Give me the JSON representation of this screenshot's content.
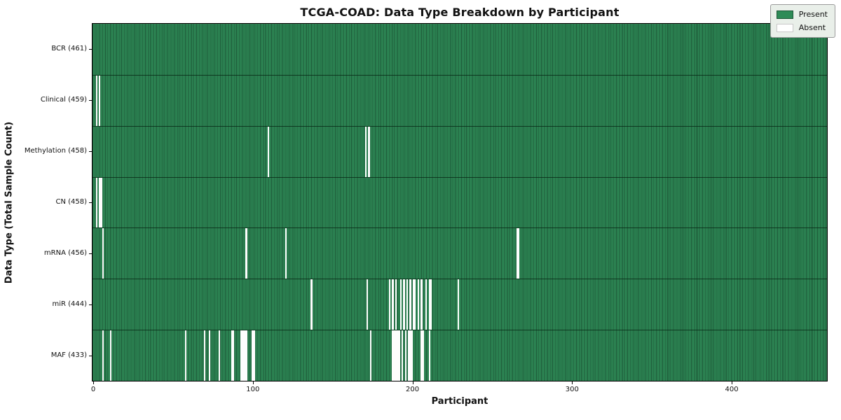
{
  "title": "TCGA-COAD: Data Type Breakdown by Participant",
  "xlabel": "Participant",
  "ylabel": "Data Type (Total Sample Count)",
  "legend": {
    "present_label": "Present",
    "absent_label": "Absent"
  },
  "colors": {
    "present": "#2e8b57",
    "present_edge": "#1d5737",
    "absent": "#fdfdfd",
    "legend_bg": "#e9efe9"
  },
  "chart_data": {
    "type": "heatmap",
    "title": "TCGA-COAD: Data Type Breakdown by Participant",
    "xlabel": "Participant",
    "ylabel": "Data Type (Total Sample Count)",
    "legend_entries": [
      "Present",
      "Absent"
    ],
    "legend_position": "upper right",
    "grid": false,
    "total_participants": 461,
    "xlim": [
      0,
      461
    ],
    "x_ticks": [
      0,
      100,
      200,
      300,
      400
    ],
    "rows": [
      {
        "name": "BCR",
        "label": "BCR (461)",
        "present_count": 461,
        "absent_participants": []
      },
      {
        "name": "Clinical",
        "label": "Clinical (459)",
        "present_count": 459,
        "absent_participants": [
          2,
          4
        ]
      },
      {
        "name": "Methylation",
        "label": "Methylation (458)",
        "present_count": 458,
        "absent_participants": [
          110,
          171,
          173
        ]
      },
      {
        "name": "CN",
        "label": "CN (458)",
        "present_count": 458,
        "absent_participants": [
          2,
          4,
          5
        ]
      },
      {
        "name": "mRNA",
        "label": "mRNA (456)",
        "present_count": 456,
        "absent_participants": [
          6,
          96,
          121,
          266,
          267
        ]
      },
      {
        "name": "miR",
        "label": "miR (444)",
        "present_count": 444,
        "absent_participants": [
          137,
          172,
          186,
          188,
          190,
          193,
          195,
          197,
          199,
          201,
          202,
          204,
          206,
          209,
          211,
          212,
          229
        ]
      },
      {
        "name": "MAF",
        "label": "MAF (433)",
        "present_count": 433,
        "absent_participants": [
          6,
          11,
          58,
          70,
          73,
          79,
          87,
          88,
          93,
          94,
          95,
          96,
          100,
          101,
          174,
          188,
          189,
          190,
          191,
          192,
          194,
          196,
          198,
          199,
          200,
          206,
          207,
          211
        ]
      }
    ]
  }
}
